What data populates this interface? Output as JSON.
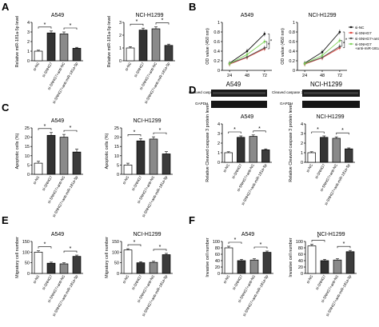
{
  "panels": {
    "A": {
      "letter": "A"
    },
    "B": {
      "letter": "B"
    },
    "C": {
      "letter": "C"
    },
    "D": {
      "letter": "D"
    },
    "E": {
      "letter": "E"
    },
    "F": {
      "letter": "F"
    }
  },
  "colors": {
    "si_nc": "#111111",
    "si_snhg7": "#e0443c",
    "si_snhg7_anti_nc": "#555555",
    "si_snhg7_anti_mir": "#7fd35a"
  },
  "blot": {
    "cleaved_label": "Cleaved caspase 3",
    "gapdh_label": "GAPDH"
  },
  "chart_data": [
    {
      "id": "A1",
      "type": "bar",
      "title": "A549",
      "ylabel": "Relative miR-181a-5p level",
      "ylim": [
        0,
        4
      ],
      "yticks": [
        0,
        1,
        2,
        3,
        4
      ],
      "categories": [
        "si-NC",
        "si-SNHG7",
        "si-SNHG7+anti-NC",
        "si-SNHG7+anti-miR-181a-5p"
      ],
      "values": [
        1.0,
        2.9,
        2.8,
        1.3
      ],
      "errors": [
        0.1,
        0.2,
        0.2,
        0.1
      ],
      "sig": [
        {
          "a": 0,
          "b": 1,
          "label": "*"
        },
        {
          "a": 2,
          "b": 3,
          "label": "*"
        }
      ]
    },
    {
      "id": "A2",
      "type": "bar",
      "title": "NCI-H1299",
      "ylabel": "Relative miR-181a-5p level",
      "ylim": [
        0,
        3
      ],
      "yticks": [
        0,
        1,
        2,
        3
      ],
      "categories": [
        "si-NC",
        "si-SNHG7",
        "si-SNHG7+anti-NC",
        "si-SNHG7+anti-miR-181a-5p"
      ],
      "values": [
        1.0,
        2.4,
        2.5,
        1.2
      ],
      "errors": [
        0.1,
        0.15,
        0.15,
        0.1
      ],
      "sig": [
        {
          "a": 0,
          "b": 1,
          "label": "*"
        },
        {
          "a": 2,
          "b": 3,
          "label": "*"
        }
      ]
    },
    {
      "id": "B1",
      "type": "line",
      "title": "A549",
      "ylabel": "OD value (450 nm)",
      "xlabel": "",
      "ylim": [
        0,
        1.0
      ],
      "yticks": [
        0,
        0.2,
        0.4,
        0.6,
        0.8,
        1.0
      ],
      "x": [
        24,
        48,
        72
      ],
      "series": [
        {
          "name": "si-NC",
          "values": [
            0.15,
            0.4,
            0.76
          ]
        },
        {
          "name": "si-SNHG7",
          "values": [
            0.13,
            0.27,
            0.45
          ]
        },
        {
          "name": "si-SNHG7+anti-NC",
          "values": [
            0.14,
            0.28,
            0.47
          ]
        },
        {
          "name": "si-SNHG7+anti-miR-181a-5p",
          "values": [
            0.14,
            0.33,
            0.6
          ]
        }
      ],
      "sig": [
        "*",
        "*"
      ]
    },
    {
      "id": "B2",
      "type": "line",
      "title": "NCI-H1299",
      "ylabel": "OD value (450 nm)",
      "xlabel": "",
      "ylim": [
        0,
        1.0
      ],
      "yticks": [
        0,
        0.2,
        0.4,
        0.6,
        0.8,
        1.0
      ],
      "x": [
        24,
        48,
        72
      ],
      "series": [
        {
          "name": "si-NC",
          "values": [
            0.15,
            0.38,
            0.8
          ]
        },
        {
          "name": "si-SNHG7",
          "values": [
            0.13,
            0.26,
            0.47
          ]
        },
        {
          "name": "si-SNHG7+anti-NC",
          "values": [
            0.14,
            0.27,
            0.5
          ]
        },
        {
          "name": "si-SNHG7+anti-miR-181a-5p",
          "values": [
            0.14,
            0.31,
            0.62
          ]
        }
      ],
      "legend": [
        "si-NC",
        "si-SNHG7",
        "si-SNHG7+anti-NC",
        "si-SNHG7\n+anti-miR-181a-5p"
      ],
      "sig": [
        "*",
        "*"
      ]
    },
    {
      "id": "C1",
      "type": "bar",
      "title": "A549",
      "ylabel": "Apoptotic cells (%)",
      "ylim": [
        0,
        25
      ],
      "yticks": [
        0,
        5,
        10,
        15,
        20,
        25
      ],
      "categories": [
        "si-NC",
        "si-SNHG7",
        "si-SNHG7+anti-NC",
        "si-SNHG7+anti-miR-181a-5p"
      ],
      "values": [
        6,
        21,
        20,
        12
      ],
      "errors": [
        1.0,
        1.5,
        1.5,
        1.5
      ],
      "sig": [
        {
          "a": 0,
          "b": 1,
          "label": "*"
        },
        {
          "a": 2,
          "b": 3,
          "label": "*"
        }
      ]
    },
    {
      "id": "C2",
      "type": "bar",
      "title": "NCI-H1299",
      "ylabel": "Apoptotic cells (%)",
      "ylim": [
        0,
        25
      ],
      "yticks": [
        0,
        5,
        10,
        15,
        20,
        25
      ],
      "categories": [
        "si-NC",
        "si-SNHG7",
        "si-SNHG7+anti-NC",
        "si-SNHG7+anti-miR-181a-5p"
      ],
      "values": [
        5,
        18,
        19,
        11
      ],
      "errors": [
        1.0,
        1.2,
        1.2,
        1.2
      ],
      "sig": [
        {
          "a": 0,
          "b": 1,
          "label": "*"
        },
        {
          "a": 2,
          "b": 3,
          "label": "*"
        }
      ]
    },
    {
      "id": "D1",
      "type": "bar",
      "title": "A549",
      "ylabel": "Relative Cleaved caspase 3 protein level",
      "ylim": [
        0,
        4
      ],
      "yticks": [
        0,
        1,
        2,
        3,
        4
      ],
      "categories": [
        "si-NC",
        "si-SNHG7",
        "si-SNHG7+anti-NC",
        "si-SNHG7+anti-miR-181a-5p"
      ],
      "values": [
        1.0,
        2.6,
        2.7,
        1.3
      ],
      "errors": [
        0.1,
        0.15,
        0.15,
        0.1
      ],
      "sig": [
        {
          "a": 0,
          "b": 1,
          "label": "*"
        },
        {
          "a": 2,
          "b": 3,
          "label": "*"
        }
      ]
    },
    {
      "id": "D2",
      "type": "bar",
      "title": "NCI-H1299",
      "ylabel": "Relative Cleaved caspase 3 protein level",
      "ylim": [
        0,
        4
      ],
      "yticks": [
        0,
        1,
        2,
        3,
        4
      ],
      "categories": [
        "si-NC",
        "si-SNHG7",
        "si-SNHG7+anti-NC",
        "si-SNHG7+anti-miR-181a-5p"
      ],
      "values": [
        1.0,
        2.6,
        2.5,
        1.4
      ],
      "errors": [
        0.1,
        0.15,
        0.15,
        0.1
      ],
      "sig": [
        {
          "a": 0,
          "b": 1,
          "label": "*"
        },
        {
          "a": 2,
          "b": 3,
          "label": "*"
        }
      ]
    },
    {
      "id": "E1",
      "type": "bar",
      "title": "A549",
      "ylabel": "Migratory cell number",
      "ylim": [
        0,
        150
      ],
      "yticks": [
        0,
        50,
        100,
        150
      ],
      "categories": [
        "si-NC",
        "si-SNHG7",
        "si-SNHG7+anti-NC",
        "si-SNHG7+anti-miR-181a-5p"
      ],
      "values": [
        100,
        48,
        45,
        80
      ],
      "errors": [
        6,
        5,
        5,
        6
      ],
      "sig": [
        {
          "a": 0,
          "b": 1,
          "label": "*"
        },
        {
          "a": 2,
          "b": 3,
          "label": "*"
        }
      ]
    },
    {
      "id": "E2",
      "type": "bar",
      "title": "NCI-H1299",
      "ylabel": "Migratory cell number",
      "ylim": [
        0,
        150
      ],
      "yticks": [
        0,
        50,
        100,
        150
      ],
      "categories": [
        "si-NC",
        "si-SNHG7",
        "si-SNHG7+anti-NC",
        "si-SNHG7+anti-miR-181a-5p"
      ],
      "values": [
        110,
        50,
        52,
        88
      ],
      "errors": [
        6,
        5,
        5,
        6
      ],
      "sig": [
        {
          "a": 0,
          "b": 1,
          "label": "*"
        },
        {
          "a": 2,
          "b": 3,
          "label": "*"
        }
      ]
    },
    {
      "id": "F1",
      "type": "bar",
      "title": "A549",
      "ylabel": "Invasive cell number",
      "ylim": [
        0,
        100
      ],
      "yticks": [
        0,
        20,
        40,
        60,
        80,
        100
      ],
      "categories": [
        "si-NC",
        "si-SNHG7",
        "si-SNHG7+anti-NC",
        "si-SNHG7+anti-miR-181a-5p"
      ],
      "values": [
        80,
        40,
        42,
        66
      ],
      "errors": [
        5,
        4,
        4,
        4
      ],
      "sig": [
        {
          "a": 0,
          "b": 1,
          "label": "*"
        },
        {
          "a": 2,
          "b": 3,
          "label": "*"
        }
      ]
    },
    {
      "id": "F2",
      "type": "bar",
      "title": "NCI-H1299",
      "ylabel": "Invasive cell number",
      "ylim": [
        0,
        100
      ],
      "yticks": [
        0,
        20,
        40,
        60,
        80,
        100
      ],
      "categories": [
        "si-NC",
        "si-SNHG7",
        "si-SNHG7+anti-NC",
        "si-SNHG7+anti-miR-181a-5p"
      ],
      "values": [
        86,
        40,
        42,
        68
      ],
      "errors": [
        5,
        4,
        4,
        4
      ],
      "sig": [
        {
          "a": 0,
          "b": 1,
          "label": "*"
        },
        {
          "a": 2,
          "b": 3,
          "label": "*"
        }
      ]
    }
  ]
}
